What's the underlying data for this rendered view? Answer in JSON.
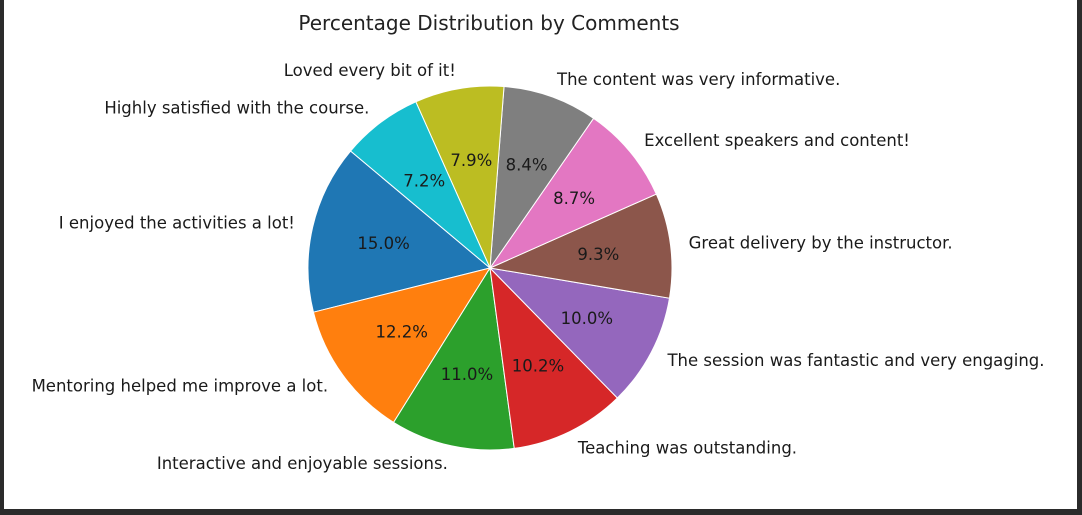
{
  "chart_data": {
    "type": "pie",
    "title": "Percentage Distribution by Comments",
    "categories": [
      "I enjoyed the activities a lot!",
      "Mentoring helped me improve a lot.",
      "Interactive and enjoyable sessions.",
      "Teaching was outstanding.",
      "The session was fantastic and very engaging.",
      "Great delivery by the instructor.",
      "Excellent speakers and content!",
      "The content was very informative.",
      "Loved every bit of it!",
      "Highly satisfied with the course."
    ],
    "values": [
      15.0,
      12.2,
      11.0,
      10.2,
      10.0,
      9.3,
      8.7,
      8.4,
      7.9,
      7.2
    ],
    "value_labels": [
      "15.0%",
      "12.2%",
      "11.0%",
      "10.2%",
      "10.0%",
      "9.3%",
      "8.7%",
      "8.4%",
      "7.9%",
      "7.2%"
    ],
    "start_angle_deg": 140,
    "direction": "counterclockwise",
    "colors": [
      "#1f77b4",
      "#ff7f0e",
      "#2ca02c",
      "#d62728",
      "#9467bd",
      "#8c564b",
      "#e377c2",
      "#7f7f7f",
      "#bcbd22",
      "#17becf"
    ],
    "legend": "none"
  }
}
